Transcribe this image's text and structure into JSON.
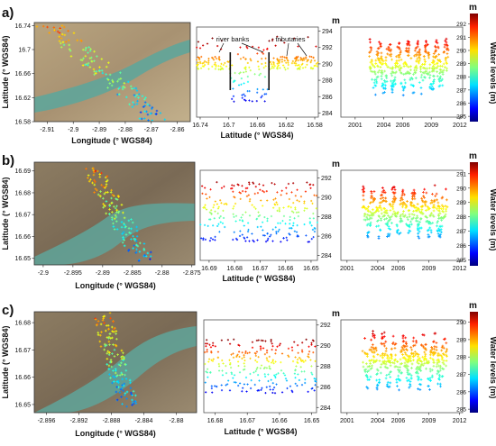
{
  "figure": {
    "panel_labels": [
      "a)",
      "b)",
      "c)"
    ],
    "colorbar_unit": "m",
    "colorbar_label": "Water levels (m)"
  },
  "chart_data": [
    {
      "panel": "a)",
      "map": {
        "type": "scatter-map",
        "xlabel": "Longitude (° WGS84)",
        "ylabel": "Latitude (° WGS84)",
        "x_ticks": [
          "-2.91",
          "-2.9",
          "-2.89",
          "-2.88",
          "-2.87",
          "-2.86"
        ],
        "y_ticks": [
          "16.74",
          "16.7",
          "16.66",
          "16.62",
          "16.58"
        ],
        "xlim": [
          -2.915,
          -2.855
        ],
        "ylim": [
          16.58,
          16.745
        ]
      },
      "profile": {
        "type": "scatter",
        "xlabel": "Latitude (° WGS84)",
        "ylabel_unit": "m",
        "x_ticks": [
          "16.74",
          "16.7",
          "16.66",
          "16.62",
          "16.58"
        ],
        "xlim": [
          16.745,
          16.575
        ],
        "y_ticks": [
          "294",
          "292",
          "290",
          "288",
          "286",
          "284"
        ],
        "ylim": [
          283.5,
          294.5
        ],
        "annotations": [
          "river banks",
          "tributaries"
        ],
        "bank_lines_lat": [
          16.698,
          16.644
        ]
      },
      "timeseries": {
        "type": "scatter",
        "x_ticks": [
          "2001",
          "2004",
          "2006",
          "2009",
          "2012"
        ],
        "xlim": [
          1999.5,
          2012.3
        ],
        "ylim": [
          284.6,
          293.2
        ],
        "colorbar_ticks": [
          "292",
          "291",
          "290",
          "289",
          "288",
          "287",
          "286",
          "285"
        ],
        "colorbar_range": [
          284.6,
          292.8
        ],
        "time_range": [
          2002.5,
          2010.8
        ],
        "level_range": [
          285.5,
          292.5
        ]
      }
    },
    {
      "panel": "b)",
      "map": {
        "type": "scatter-map",
        "xlabel": "Longitude (° WGS84)",
        "ylabel": "Latitude (° WGS84)",
        "x_ticks": [
          "-2.9",
          "-2.895",
          "-2.89",
          "-2.885",
          "-2.88",
          "-2.875"
        ],
        "y_ticks": [
          "16.69",
          "16.68",
          "16.67",
          "16.66",
          "16.65"
        ],
        "xlim": [
          -2.9015,
          -2.8745
        ],
        "ylim": [
          16.647,
          16.694
        ]
      },
      "profile": {
        "type": "scatter",
        "xlabel": "Latitude (° WGS84)",
        "ylabel_unit": "m",
        "x_ticks": [
          "16.69",
          "16.68",
          "16.67",
          "16.66",
          "16.65"
        ],
        "xlim": [
          16.6935,
          16.6475
        ],
        "y_ticks": [
          "292",
          "290",
          "288",
          "286",
          "284"
        ],
        "ylim": [
          283.5,
          292.8
        ]
      },
      "timeseries": {
        "type": "scatter",
        "x_ticks": [
          "2001",
          "2004",
          "2006",
          "2009",
          "2012"
        ],
        "xlim": [
          2000.4,
          2012.3
        ],
        "ylim": [
          284.4,
          292.6
        ],
        "colorbar_ticks": [
          "291",
          "290",
          "289",
          "288",
          "287",
          "286",
          "285"
        ],
        "colorbar_range": [
          284.6,
          291.8
        ],
        "time_range": [
          2002.5,
          2010.8
        ],
        "level_range": [
          285.4,
          291.6
        ]
      }
    },
    {
      "panel": "c)",
      "map": {
        "type": "scatter-map",
        "xlabel": "Longitude (° WGS84)",
        "ylabel": "Latitude (° WGS84)",
        "x_ticks": [
          "-2.896",
          "-2.892",
          "-2.888",
          "-2.884",
          "-2.88"
        ],
        "y_ticks": [
          "16.68",
          "16.67",
          "16.66",
          "16.65"
        ],
        "xlim": [
          -2.8975,
          -2.8775
        ],
        "ylim": [
          16.647,
          16.684
        ]
      },
      "profile": {
        "type": "scatter",
        "xlabel": "Latitude (° WGS84)",
        "ylabel_unit": "m",
        "x_ticks": [
          "16.68",
          "16.67",
          "16.66",
          "16.65"
        ],
        "xlim": [
          16.6835,
          16.6485
        ],
        "y_ticks": [
          "292",
          "290",
          "288",
          "286",
          "284"
        ],
        "ylim": [
          283.5,
          292.5
        ]
      },
      "timeseries": {
        "type": "scatter",
        "x_ticks": [
          "2001",
          "2004",
          "2006",
          "2009",
          "2012"
        ],
        "xlim": [
          2000.4,
          2012.3
        ],
        "ylim": [
          284.8,
          291.0
        ],
        "colorbar_ticks": [
          "290",
          "289",
          "288",
          "287",
          "286",
          "285"
        ],
        "colorbar_range": [
          284.8,
          290.6
        ],
        "time_range": [
          2002.5,
          2010.8
        ],
        "level_range": [
          285.4,
          290.6
        ]
      }
    }
  ]
}
